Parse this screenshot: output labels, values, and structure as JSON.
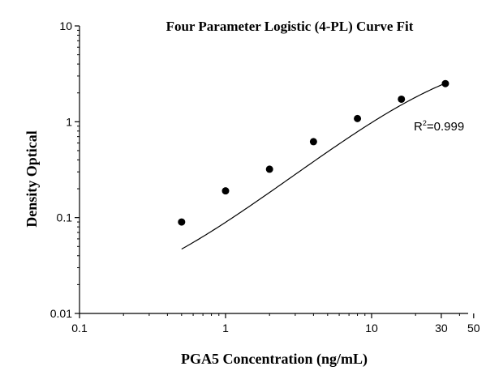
{
  "chart_data": {
    "type": "scatter",
    "title": "Four Parameter Logistic (4-PL) Curve Fit",
    "xlabel": "PGA5 Concentration (ng/mL)",
    "ylabel": "Density Optical",
    "x_scale": "log",
    "y_scale": "log",
    "xlim": [
      0.1,
      50
    ],
    "ylim": [
      0.01,
      10
    ],
    "x_ticks": [
      {
        "value": 0.1,
        "label": "0.1"
      },
      {
        "value": 1,
        "label": "1"
      },
      {
        "value": 10,
        "label": "10"
      },
      {
        "value": 30,
        "label": "30"
      },
      {
        "value": 50,
        "label": "50"
      }
    ],
    "y_ticks": [
      {
        "value": 0.01,
        "label": "0.01"
      },
      {
        "value": 0.1,
        "label": "0.1"
      },
      {
        "value": 1,
        "label": "1"
      },
      {
        "value": 10,
        "label": "10"
      }
    ],
    "grid": false,
    "legend": "none",
    "series": [
      {
        "x": [
          0.5,
          1,
          2,
          4,
          8,
          16,
          32
        ],
        "y": [
          0.09,
          0.19,
          0.32,
          0.62,
          1.08,
          1.72,
          2.5
        ]
      }
    ],
    "fit_curve": {
      "model": "4PL",
      "a": 0.013,
      "b": 1.18,
      "c": 37,
      "d": 5.5,
      "x_range": [
        0.5,
        32
      ]
    },
    "annotation": {
      "base": "R",
      "sup": "2",
      "rest": "=0.999"
    },
    "colors": {
      "marker": "#000000",
      "curve": "#000000",
      "axis": "#000000"
    }
  }
}
